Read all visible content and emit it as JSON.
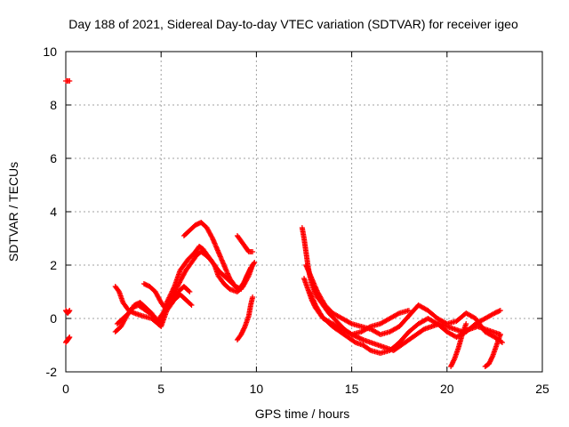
{
  "chart_data": {
    "type": "scatter",
    "title": "Day 188 of 2021, Sidereal Day-to-day VTEC variation (SDTVAR) for receiver igeo",
    "xlabel": "GPS time / hours",
    "ylabel": "SDTVAR / TECUs",
    "xlim": [
      0,
      25
    ],
    "ylim": [
      -2,
      10
    ],
    "xticks": [
      0,
      5,
      10,
      15,
      20,
      25
    ],
    "yticks": [
      -2,
      0,
      2,
      4,
      6,
      8,
      10
    ],
    "grid": true,
    "marker": "+",
    "color": "#ff0000",
    "series": [
      {
        "name": "seg-a",
        "x": [
          0.0,
          0.2
        ],
        "y": [
          8.9,
          8.9
        ]
      },
      {
        "name": "seg-b",
        "x": [
          0.0,
          0.05,
          0.1,
          0.15,
          0.2
        ],
        "y": [
          0.3,
          0.25,
          0.2,
          0.25,
          0.3
        ]
      },
      {
        "name": "seg-c",
        "x": [
          0.0,
          0.05,
          0.1,
          0.15,
          0.2
        ],
        "y": [
          -0.9,
          -0.85,
          -0.8,
          -0.75,
          -0.7
        ]
      },
      {
        "name": "seg-d",
        "x": [
          2.6,
          2.8,
          3.0,
          3.3,
          3.6,
          4.0,
          4.5,
          5.0,
          5.3,
          5.6,
          6.0,
          6.3,
          6.6,
          6.9,
          7.1,
          7.3,
          7.6,
          7.8,
          8.0,
          8.3,
          8.6,
          8.9,
          9.1,
          9.4,
          9.7
        ],
        "y": [
          1.2,
          1.0,
          0.6,
          0.3,
          0.2,
          0.1,
          0.0,
          -0.3,
          0.3,
          0.8,
          1.4,
          1.8,
          2.1,
          2.4,
          2.5,
          2.4,
          2.2,
          2.0,
          1.8,
          1.6,
          1.4,
          1.2,
          1.1,
          1.4,
          1.9
        ]
      },
      {
        "name": "seg-e",
        "x": [
          2.6,
          2.9,
          3.2,
          3.5,
          3.8,
          4.2,
          4.6,
          5.0,
          5.3,
          5.7,
          6.0,
          6.4,
          6.8,
          7.0,
          7.2,
          7.5,
          7.8,
          8.0,
          8.3,
          8.6,
          9.0,
          9.3,
          9.6,
          9.8
        ],
        "y": [
          -0.5,
          -0.3,
          0.1,
          0.4,
          0.5,
          0.3,
          0.1,
          -0.2,
          0.6,
          1.2,
          1.8,
          2.2,
          2.5,
          2.7,
          2.6,
          2.3,
          2.0,
          1.6,
          1.3,
          1.1,
          1.0,
          1.2,
          1.6,
          2.0
        ]
      },
      {
        "name": "seg-f",
        "x": [
          2.7,
          3.0,
          3.3,
          3.6,
          3.9,
          4.2,
          4.5,
          4.8,
          5.1,
          5.4,
          5.7,
          6.0,
          6.3,
          6.6
        ],
        "y": [
          -0.2,
          0.0,
          0.2,
          0.5,
          0.6,
          0.4,
          0.2,
          -0.1,
          0.2,
          0.5,
          0.7,
          0.9,
          0.7,
          0.5
        ]
      },
      {
        "name": "seg-g",
        "x": [
          4.1,
          4.4,
          4.7,
          5.0,
          5.3,
          5.6,
          5.9,
          6.2,
          6.5
        ],
        "y": [
          1.3,
          1.2,
          1.0,
          0.6,
          0.3,
          0.6,
          1.0,
          1.2,
          1.0
        ]
      },
      {
        "name": "seg-h",
        "x": [
          6.2,
          6.5,
          6.8,
          7.1,
          7.4,
          7.7,
          8.0,
          8.3,
          8.6,
          8.9,
          9.2,
          9.5,
          9.8,
          9.9
        ],
        "y": [
          3.1,
          3.3,
          3.5,
          3.6,
          3.4,
          3.0,
          2.5,
          2.0,
          1.5,
          1.2,
          1.1,
          1.6,
          2.0,
          2.1
        ]
      },
      {
        "name": "seg-i",
        "x": [
          9.0,
          9.2,
          9.4,
          9.5,
          9.6,
          9.8
        ],
        "y": [
          3.1,
          2.9,
          2.7,
          2.6,
          2.5,
          2.5
        ]
      },
      {
        "name": "seg-j",
        "x": [
          9.0,
          9.2,
          9.4,
          9.6,
          9.7,
          9.8
        ],
        "y": [
          -0.8,
          -0.6,
          -0.3,
          0.1,
          0.5,
          0.8
        ]
      },
      {
        "name": "seg-k",
        "x": [
          12.4,
          12.5,
          12.6,
          12.7,
          12.8,
          12.9,
          13.0,
          13.2,
          13.5,
          13.8,
          14.2,
          14.6,
          15.0,
          15.3,
          15.6,
          16.0,
          16.4,
          16.8,
          17.2,
          17.6,
          18.0,
          18.4,
          18.8,
          19.2,
          19.6,
          20.0,
          20.4,
          20.8,
          21.2,
          21.6,
          22.0,
          22.4,
          22.8
        ],
        "y": [
          3.4,
          3.0,
          2.5,
          2.0,
          1.6,
          1.3,
          1.1,
          0.8,
          0.5,
          0.2,
          -0.1,
          -0.4,
          -0.6,
          -0.7,
          -0.8,
          -0.9,
          -1.0,
          -1.1,
          -1.2,
          -1.0,
          -0.8,
          -0.6,
          -0.4,
          -0.3,
          -0.2,
          -0.3,
          -0.4,
          -0.5,
          -0.4,
          -0.3,
          -0.4,
          -0.5,
          -0.6
        ]
      },
      {
        "name": "seg-l",
        "x": [
          12.5,
          12.7,
          12.9,
          13.1,
          13.4,
          13.7,
          14.0,
          14.4,
          14.8,
          15.2,
          15.6,
          16.0,
          16.5,
          17.0,
          17.5,
          18.0,
          18.5,
          19.0,
          19.5,
          20.0,
          20.5,
          21.0,
          21.5,
          22.0,
          22.5,
          22.8
        ],
        "y": [
          1.5,
          1.1,
          0.7,
          0.4,
          0.1,
          -0.1,
          -0.3,
          -0.5,
          -0.7,
          -0.9,
          -1.0,
          -1.2,
          -1.3,
          -1.2,
          -0.9,
          -0.5,
          -0.2,
          0.0,
          -0.2,
          -0.5,
          -0.7,
          -0.5,
          -0.2,
          0.0,
          0.2,
          0.3
        ]
      },
      {
        "name": "seg-m",
        "x": [
          12.6,
          12.9,
          13.2,
          13.6,
          14.0,
          14.5,
          15.0,
          15.5,
          16.0,
          16.5,
          17.0,
          17.5,
          18.0,
          18.5,
          19.0,
          19.5,
          20.0,
          20.5,
          21.0,
          21.5,
          22.0,
          22.5,
          22.9
        ],
        "y": [
          2.0,
          1.5,
          1.0,
          0.5,
          0.2,
          0.0,
          -0.2,
          -0.3,
          -0.4,
          -0.6,
          -0.5,
          -0.3,
          0.1,
          0.5,
          0.3,
          0.0,
          -0.2,
          -0.1,
          0.2,
          0.0,
          -0.5,
          -0.7,
          -0.9
        ]
      },
      {
        "name": "seg-n",
        "x": [
          12.8,
          13.1,
          13.5,
          14.0,
          14.5,
          15.0,
          15.5,
          16.0,
          16.5,
          17.0,
          17.5,
          18.0
        ],
        "y": [
          1.0,
          0.5,
          0.0,
          -0.2,
          -0.4,
          -0.6,
          -0.5,
          -0.3,
          -0.2,
          0.0,
          0.2,
          0.3
        ]
      },
      {
        "name": "seg-o",
        "x": [
          20.2,
          20.4,
          20.6,
          20.8,
          21.0
        ],
        "y": [
          -1.8,
          -1.5,
          -1.1,
          -0.6,
          -0.2
        ]
      },
      {
        "name": "seg-p",
        "x": [
          22.0,
          22.2,
          22.4,
          22.6,
          22.8
        ],
        "y": [
          -1.8,
          -1.7,
          -1.4,
          -1.0,
          -0.6
        ]
      }
    ]
  }
}
